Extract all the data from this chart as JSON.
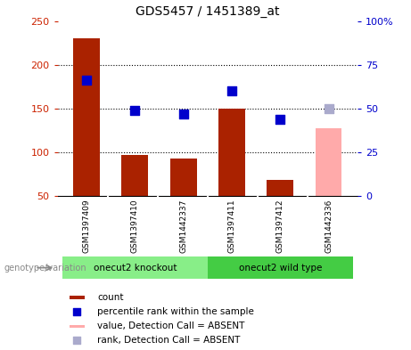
{
  "title": "GDS5457 / 1451389_at",
  "samples": [
    "GSM1397409",
    "GSM1397410",
    "GSM1442337",
    "GSM1397411",
    "GSM1397412",
    "GSM1442336"
  ],
  "bar_values": [
    230,
    97,
    93,
    150,
    68,
    127
  ],
  "bar_colors": [
    "#aa2200",
    "#aa2200",
    "#aa2200",
    "#aa2200",
    "#aa2200",
    "#ffaaaa"
  ],
  "dot_values_pct": [
    66,
    49,
    47,
    60,
    44,
    50
  ],
  "dot_colors": [
    "#0000cc",
    "#0000cc",
    "#0000cc",
    "#0000cc",
    "#0000cc",
    "#aaaacc"
  ],
  "ylim_left": [
    50,
    250
  ],
  "ylim_right": [
    0,
    100
  ],
  "yticks_left": [
    50,
    100,
    150,
    200,
    250
  ],
  "yticks_right": [
    0,
    25,
    50,
    75,
    100
  ],
  "ytick_labels_right": [
    "0",
    "25",
    "50",
    "75",
    "100%"
  ],
  "groups": [
    {
      "label": "onecut2 knockout",
      "start": 0,
      "end": 3,
      "color": "#88ee88"
    },
    {
      "label": "onecut2 wild type",
      "start": 3,
      "end": 6,
      "color": "#44cc44"
    }
  ],
  "genotype_label": "genotype/variation",
  "legend_items": [
    {
      "label": "count",
      "color": "#aa2200",
      "is_bar": true
    },
    {
      "label": "percentile rank within the sample",
      "color": "#0000cc",
      "is_bar": false
    },
    {
      "label": "value, Detection Call = ABSENT",
      "color": "#ffaaaa",
      "is_bar": true
    },
    {
      "label": "rank, Detection Call = ABSENT",
      "color": "#aaaacc",
      "is_bar": false
    }
  ],
  "bar_width": 0.55,
  "dot_size": 50,
  "background_color": "#ffffff",
  "grid_color": "#000000",
  "tick_color_left": "#cc2200",
  "tick_color_right": "#0000cc",
  "grid_yticks": [
    100,
    150,
    200
  ]
}
